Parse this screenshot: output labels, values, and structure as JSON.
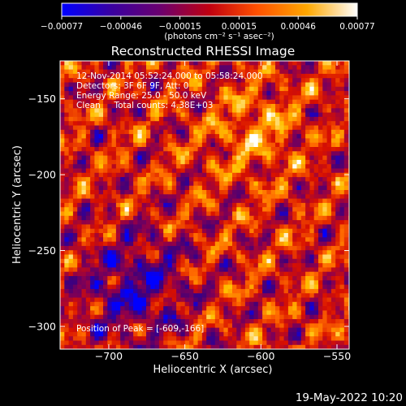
{
  "chart_data": {
    "type": "heatmap",
    "title": "Reconstructed RHESSI Image",
    "xlabel": "Heliocentric X (arcsec)",
    "ylabel": "Heliocentric Y (arcsec)",
    "xlim": [
      -732,
      -542
    ],
    "ylim": [
      -315,
      -125
    ],
    "xticks": [
      -700,
      -650,
      -600,
      -550
    ],
    "yticks": [
      -150,
      -200,
      -250,
      -300
    ],
    "colorbar": {
      "min": -0.00077,
      "max": 0.00077,
      "ticks": [
        "-0.00077",
        "-0.00046",
        "-0.00015",
        "0.00015",
        "0.00046",
        "0.00077"
      ],
      "units": "(photons cm⁻² s⁻¹ asec⁻²)",
      "colormap": [
        "#0000ff",
        "#40007a",
        "#8a0050",
        "#d81000",
        "#ff6a00",
        "#ffc000",
        "#ffffff"
      ]
    },
    "annotations": {
      "time_range": "12-Nov-2014 05:52:24.000 to 05:58:24.000",
      "detectors": "Detectors: 3F 6F 9F, Att: 0",
      "energy": "Energy Range: 25.0 - 50.0 keV",
      "clean": "Clean     Total counts: 4.38E+03",
      "peak": "Position of Peak = [-609,-166]"
    },
    "peak_position": [
      -609,
      -166
    ]
  },
  "footer": {
    "date": "19-May-2022 10:20"
  }
}
